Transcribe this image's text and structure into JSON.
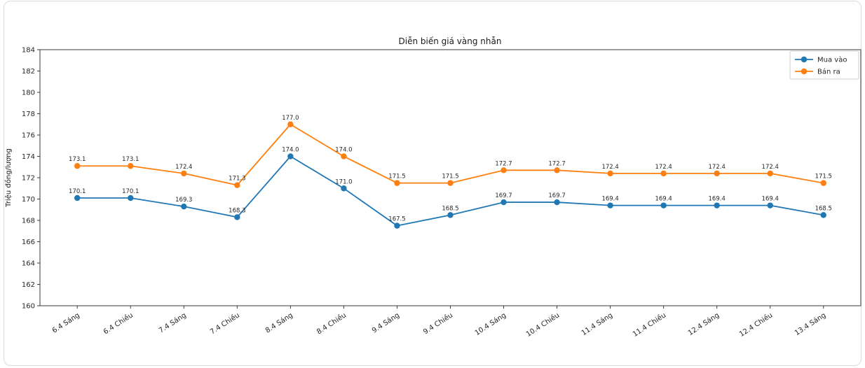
{
  "chart_data": {
    "type": "line",
    "title": "Diễn biến giá vàng nhẫn",
    "ylabel": "Triệu đồng/lượng",
    "xlabel": "",
    "categories": [
      "6.4 Sáng",
      "6.4 Chiều",
      "7.4 Sáng",
      "7.4 Chiều",
      "8.4 Sáng",
      "8.4 Chiều",
      "9.4 Sáng",
      "9.4 Chiều",
      "10.4 Sáng",
      "10.4 Chiều",
      "11.4 Sáng",
      "11.4 Chiều",
      "12.4 Sáng",
      "12.4 Chiều",
      "13.4 Sáng"
    ],
    "series": [
      {
        "name": "Mua vào",
        "color": "#1f77b4",
        "values": [
          170.1,
          170.1,
          169.3,
          168.3,
          174.0,
          171.0,
          167.5,
          168.5,
          169.7,
          169.7,
          169.4,
          169.4,
          169.4,
          169.4,
          168.5
        ]
      },
      {
        "name": "Bán ra",
        "color": "#ff7f0e",
        "values": [
          173.1,
          173.1,
          172.4,
          171.3,
          177.0,
          174.0,
          171.5,
          171.5,
          172.7,
          172.7,
          172.4,
          172.4,
          172.4,
          172.4,
          171.5
        ]
      }
    ],
    "ylim": [
      160,
      184
    ],
    "ytick_step": 2,
    "grid": false,
    "legend_position": "upper right",
    "marker": "circle",
    "value_labels_shown": true,
    "x_tick_rotation_deg": 33,
    "axis_color": "#3a3a3a"
  }
}
